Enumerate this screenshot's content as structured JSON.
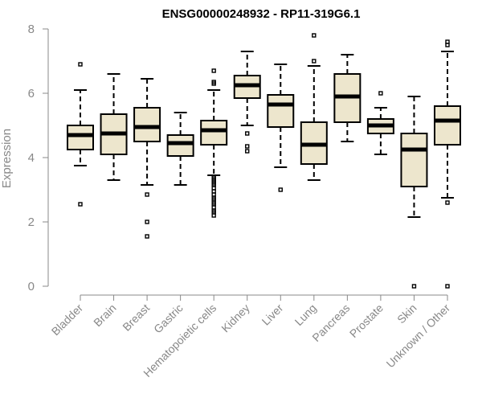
{
  "chart_data": {
    "type": "boxplot",
    "title": "ENSG00000248932 - RP11-319G6.1",
    "xlabel": "",
    "ylabel": "Expression",
    "ylim": [
      0,
      8
    ],
    "yticks": [
      0,
      2,
      4,
      6,
      8
    ],
    "grid": false,
    "colors": {
      "box_fill": "#ede6cd",
      "box_stroke": "#000000",
      "axis": "#888888"
    },
    "categories": [
      "Bladder",
      "Brain",
      "Breast",
      "Gastric",
      "Hematopoietic cells",
      "Kidney",
      "Liver",
      "Lung",
      "Pancreas",
      "Prostate",
      "Skin",
      "Unknown / Other"
    ],
    "series": [
      {
        "name": "Bladder",
        "whisker_low": 3.75,
        "q1": 4.25,
        "median": 4.7,
        "q3": 5.0,
        "whisker_high": 6.1,
        "outliers": [
          6.9,
          2.55
        ]
      },
      {
        "name": "Brain",
        "whisker_low": 3.3,
        "q1": 4.1,
        "median": 4.75,
        "q3": 5.35,
        "whisker_high": 6.6,
        "outliers": []
      },
      {
        "name": "Breast",
        "whisker_low": 3.15,
        "q1": 4.5,
        "median": 4.95,
        "q3": 5.55,
        "whisker_high": 6.45,
        "outliers": [
          2.85,
          2.0,
          1.55
        ]
      },
      {
        "name": "Gastric",
        "whisker_low": 3.15,
        "q1": 4.05,
        "median": 4.45,
        "q3": 4.7,
        "whisker_high": 5.4,
        "outliers": []
      },
      {
        "name": "Hematopoietic cells",
        "whisker_low": 3.45,
        "q1": 4.4,
        "median": 4.85,
        "q3": 5.15,
        "whisker_high": 6.1,
        "outliers": [
          6.7,
          6.35,
          6.3,
          3.4,
          3.35,
          3.3,
          3.25,
          3.2,
          3.15,
          3.05,
          2.95,
          2.85,
          2.75,
          2.7,
          2.6,
          2.55,
          2.45,
          2.35,
          2.3,
          2.2
        ]
      },
      {
        "name": "Kidney",
        "whisker_low": 5.0,
        "q1": 5.85,
        "median": 6.25,
        "q3": 6.55,
        "whisker_high": 7.3,
        "outliers": [
          4.75,
          4.35,
          4.2
        ]
      },
      {
        "name": "Liver",
        "whisker_low": 3.7,
        "q1": 4.95,
        "median": 5.65,
        "q3": 5.95,
        "whisker_high": 6.9,
        "outliers": [
          3.0
        ]
      },
      {
        "name": "Lung",
        "whisker_low": 3.3,
        "q1": 3.8,
        "median": 4.4,
        "q3": 5.1,
        "whisker_high": 6.85,
        "outliers": [
          7.8,
          7.0
        ]
      },
      {
        "name": "Pancreas",
        "whisker_low": 4.5,
        "q1": 5.1,
        "median": 5.9,
        "q3": 6.6,
        "whisker_high": 7.2,
        "outliers": []
      },
      {
        "name": "Prostate",
        "whisker_low": 4.1,
        "q1": 4.75,
        "median": 5.0,
        "q3": 5.2,
        "whisker_high": 5.55,
        "outliers": [
          6.0
        ]
      },
      {
        "name": "Skin",
        "whisker_low": 2.15,
        "q1": 3.1,
        "median": 4.25,
        "q3": 4.75,
        "whisker_high": 5.9,
        "outliers": [
          0.0
        ]
      },
      {
        "name": "Unknown / Other",
        "whisker_low": 2.75,
        "q1": 4.4,
        "median": 5.15,
        "q3": 5.6,
        "whisker_high": 7.3,
        "outliers": [
          7.6,
          7.5,
          2.6,
          0.0
        ]
      }
    ]
  }
}
